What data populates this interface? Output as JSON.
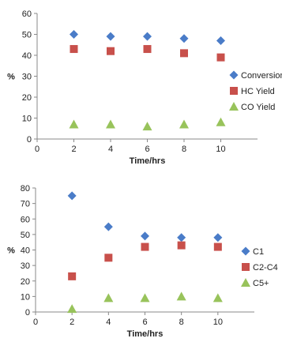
{
  "chart_data": [
    {
      "type": "scatter",
      "title": "",
      "xlabel": "Time/hrs",
      "ylabel": "%",
      "xlim": [
        0,
        12
      ],
      "ylim": [
        0,
        60
      ],
      "xticks": [
        0,
        2,
        4,
        6,
        8,
        10
      ],
      "yticks": [
        0,
        10,
        20,
        30,
        40,
        50,
        60
      ],
      "grid": false,
      "legend_position": "right",
      "x": [
        2,
        4,
        6,
        8,
        10
      ],
      "series": [
        {
          "name": "Conversion",
          "marker": "diamond",
          "color": "#4a7cc8",
          "values": [
            50,
            49,
            49,
            48,
            47
          ]
        },
        {
          "name": "HC Yield",
          "marker": "square",
          "color": "#c8504b",
          "values": [
            43,
            42,
            43,
            41,
            39
          ]
        },
        {
          "name": "CO Yield",
          "marker": "triangle",
          "color": "#98c35b",
          "values": [
            7,
            7,
            6,
            7,
            8
          ]
        }
      ]
    },
    {
      "type": "scatter",
      "title": "",
      "xlabel": "Time/hrs",
      "ylabel": "%",
      "xlim": [
        0,
        12
      ],
      "ylim": [
        0,
        80
      ],
      "xticks": [
        0,
        2,
        4,
        6,
        8,
        10
      ],
      "yticks": [
        0,
        10,
        20,
        30,
        40,
        50,
        60,
        70,
        80
      ],
      "grid": false,
      "legend_position": "right",
      "x": [
        2,
        4,
        6,
        8,
        10
      ],
      "series": [
        {
          "name": "C1",
          "marker": "diamond",
          "color": "#4a7cc8",
          "values": [
            75,
            55,
            49,
            48,
            48
          ]
        },
        {
          "name": "C2-C4",
          "marker": "square",
          "color": "#c8504b",
          "values": [
            23,
            35,
            42,
            43,
            42
          ]
        },
        {
          "name": "C5+",
          "marker": "triangle",
          "color": "#98c35b",
          "values": [
            2,
            9,
            9,
            10,
            9
          ]
        }
      ]
    }
  ]
}
